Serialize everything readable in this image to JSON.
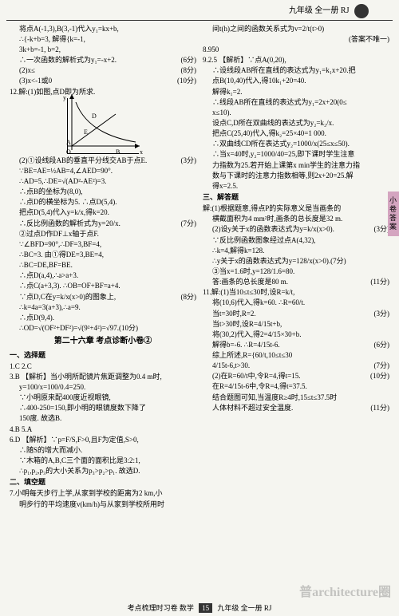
{
  "header": {
    "text": "九年级 全一册 RJ"
  },
  "side_tab": "小卷答案",
  "footer": {
    "left": "考点梳理时习卷 数学",
    "page": "15",
    "right": "九年级 全一册 RJ"
  },
  "watermark": "普architecture圈",
  "left_col": [
    {
      "t": "将点A(-1,3),B(3,-1)代入y₁=kx+b,",
      "cls": "indent1"
    },
    {
      "t": "∴{-k+b=3, 解得{k=-1,",
      "cls": "indent1"
    },
    {
      "t": "  3k+b=-1,      b=2,",
      "cls": "indent1"
    },
    {
      "t": "∴一次函数的解析式为y₁=-x+2.",
      "cls": "indent1",
      "score": "(6分)"
    },
    {
      "t": "(2)x≤",
      "cls": "indent1",
      "score": "(8分)"
    },
    {
      "t": "(3)x<-1或0<x<3.",
      "cls": "indent1",
      "score": "(10分)"
    },
    {
      "t": "12.解:(1)如图,点D即为所求.",
      "cls": ""
    },
    {
      "t": "__GRAPH__",
      "cls": ""
    },
    {
      "t": "",
      "cls": "",
      "score": "(3分)"
    },
    {
      "t": "(2)①设线段AB的垂直平分线交AB于点E.",
      "cls": "indent1"
    },
    {
      "t": "∵BE=AE=½AB=4,∠AED=90°.",
      "cls": "indent1"
    },
    {
      "t": "∴AD=5,∴DE=√(AD²-AE²)=3.",
      "cls": "indent1"
    },
    {
      "t": "∴点B的坐标为(8,0),",
      "cls": "indent1"
    },
    {
      "t": "∴点D的横坐标为5. ∴点D(5,4).",
      "cls": "indent1"
    },
    {
      "t": "把点D(5,4)代入y=k/x,得k=20.",
      "cls": "indent1"
    },
    {
      "t": "∴反比例函数的解析式为y=20/x.",
      "cls": "indent1",
      "score": "(7分)"
    },
    {
      "t": "②过点D作DF⊥x轴于点F.",
      "cls": "indent1"
    },
    {
      "t": "∵∠BFD=90°,∴DF=3,BF=4,",
      "cls": "indent1"
    },
    {
      "t": "∴BC=3. 由①得DE=3,BE=4,",
      "cls": "indent1"
    },
    {
      "t": "∴BC=DE,BF=BE.",
      "cls": "indent1"
    },
    {
      "t": "∴点D(a,4),∴a>a+3.",
      "cls": "indent1"
    },
    {
      "t": "∴点C(a+3,3). ∴OB=OF+BF=a+4.",
      "cls": "indent1"
    },
    {
      "t": "",
      "cls": "",
      "score": "(8分)"
    },
    {
      "t": "∵点D,C在y=k/x(x>0)的图象上,",
      "cls": "indent1"
    },
    {
      "t": "∴k=4a=3(a+3),∴a=9.",
      "cls": "indent1"
    },
    {
      "t": "∴点D(9,4).",
      "cls": "indent1"
    },
    {
      "t": "∴OD=√(OF²+DF²)=√(9²+4²)=√97.(10分)",
      "cls": "indent1"
    },
    {
      "t": "第二十六章 考点诊断小卷②",
      "cls": "section-title"
    },
    {
      "t": "一、选择题",
      "cls": "sub-title"
    },
    {
      "t": "1.C  2.C",
      "cls": ""
    },
    {
      "t": "3.B 【解析】当小明所配镜片焦距调整为0.4 m时,",
      "cls": ""
    },
    {
      "t": "y=100/x=100/0.4=250.",
      "cls": "indent1"
    },
    {
      "t": "∵小明原来配400度近视眼镜,",
      "cls": "indent1"
    },
    {
      "t": "∴400-250=150,即小明的眼镜度数下降了",
      "cls": "indent1"
    },
    {
      "t": "150度. 故选B.",
      "cls": "indent1"
    },
    {
      "t": "4.B  5.A",
      "cls": ""
    },
    {
      "t": "6.D 【解析】∵p=F/S,F>0,且F为定值,S>0,",
      "cls": ""
    },
    {
      "t": "∴随S的增大而减小.",
      "cls": "indent1"
    },
    {
      "t": "∵木箱的A,B,C三个面的面积比是3:2:1,",
      "cls": "indent1"
    },
    {
      "t": "∴p₁,p₂,p₃的大小关系为p₃>p₂>p₁. 故选D.",
      "cls": "indent1"
    },
    {
      "t": "二、填空题",
      "cls": "sub-title"
    },
    {
      "t": "7.小明每天步行上学,从家到学校的距离为2 km,小",
      "cls": ""
    },
    {
      "t": "明步行的平均速度v(km/h)与从家到学校所用时",
      "cls": "indent1"
    }
  ],
  "right_col": [
    {
      "t": "间t(h)之间的函数关系式为v=2/t(t>0)",
      "cls": "indent1"
    },
    {
      "t": "(答案不唯一)",
      "cls": "indent1",
      "align": "right"
    },
    {
      "t": "8.950",
      "cls": ""
    },
    {
      "t": "9.2.5 【解析】∵点A(0,20),",
      "cls": ""
    },
    {
      "t": "∴设线段AB所在直线的表达式为y₁=k₁x+20.把",
      "cls": "indent1"
    },
    {
      "t": "点B(10,40)代入,得10k₁+20=40.",
      "cls": "indent1"
    },
    {
      "t": "解得k₁=2.",
      "cls": "indent1"
    },
    {
      "t": "∴线段AB所在直线的表达式为y₁=2x+20(0≤",
      "cls": "indent1"
    },
    {
      "t": "x≤10).",
      "cls": "indent1"
    },
    {
      "t": "设点C,D所在双曲线的表达式为y₂=k₂/x.",
      "cls": "indent1"
    },
    {
      "t": "把点C(25,40)代入,得k₂=25×40=1 000.",
      "cls": "indent1"
    },
    {
      "t": "∴双曲线CD所在表达式y₂=1000/x(25≤x≤50).",
      "cls": "indent1"
    },
    {
      "t": "∴当x=40时,y₂=1000/40=25,即下课时学生注意",
      "cls": "indent1"
    },
    {
      "t": "力指数为25.若开始上课第x min学生的注意力指",
      "cls": "indent1"
    },
    {
      "t": "数与下课时的注意力指数相等,则2x+20=25.解",
      "cls": "indent1"
    },
    {
      "t": "得x=2.5.",
      "cls": "indent1"
    },
    {
      "t": "三、解答题",
      "cls": "sub-title"
    },
    {
      "t": "解:(1)根据题意,得点P的实际意义是当画条的",
      "cls": ""
    },
    {
      "t": "横截面积为4 mm²时,画条的总长度是32 m.",
      "cls": "indent1"
    },
    {
      "t": "",
      "cls": "",
      "score": "(3分)"
    },
    {
      "t": "(2)设y关于x的函数表达式为y=k/x(x>0).",
      "cls": "indent1"
    },
    {
      "t": "∵反比例函数图象经过点A(4,32),",
      "cls": "indent1"
    },
    {
      "t": "∴k=4,解得k=128.",
      "cls": "indent1"
    },
    {
      "t": "∴y关于x的函数表达式为y=128/x(x>0).(7分)",
      "cls": "indent1"
    },
    {
      "t": "③当x=1.6时,y=128/1.6=80.",
      "cls": "indent1"
    },
    {
      "t": "答:画条的总长度是80 m.",
      "cls": "indent1",
      "score": "(11分)"
    },
    {
      "t": "11.解:(1)当10≤t≤30时,设R=k/t,",
      "cls": ""
    },
    {
      "t": "将(10,6)代入,得k=60. ∴R=60/t.",
      "cls": "indent1"
    },
    {
      "t": "当t=30时,R=2.",
      "cls": "indent1",
      "score": "(3分)"
    },
    {
      "t": "当t>30时,设R=4/15t+b,",
      "cls": "indent1"
    },
    {
      "t": "将(30,2)代入,得2=4/15×30+b.",
      "cls": "indent1"
    },
    {
      "t": "解得b=-6. ∴R=4/15t-6.",
      "cls": "indent1",
      "score": "(6分)"
    },
    {
      "t": "综上所述,R={60/t,10≤t≤30",
      "cls": "indent1"
    },
    {
      "t": "              4/15t-6,t>30.",
      "cls": "indent1",
      "score": "(7分)"
    },
    {
      "t": "(2)在R=60/t中,令R=4,得t=15.",
      "cls": "indent1",
      "score": "(10分)"
    },
    {
      "t": "在R=4/15t-6中,令R=4,得t=37.5.",
      "cls": "indent1"
    },
    {
      "t": "结合题图可知,当温度R≥4时,15≤t≤37.5时",
      "cls": "indent1"
    },
    {
      "t": "人体材料不超过安全温度.",
      "cls": "indent1",
      "score": "(11分)"
    }
  ],
  "graph": {
    "axis_color": "#000",
    "curve_color": "#000",
    "labels": [
      "y",
      "D",
      "E",
      "A",
      "O",
      "B",
      "x"
    ]
  },
  "colors": {
    "bg": "#f5f5f0",
    "text": "#000000",
    "side_tab": "#d4a5c0",
    "footer_pg_bg": "#333333"
  }
}
